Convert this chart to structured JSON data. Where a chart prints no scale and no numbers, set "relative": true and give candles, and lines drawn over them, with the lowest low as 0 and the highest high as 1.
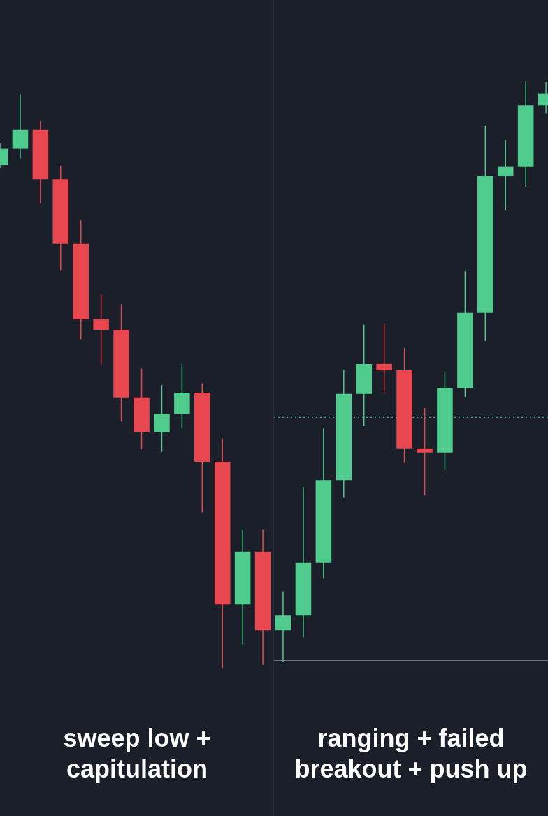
{
  "chart_data": {
    "type": "candlestick",
    "relative": true,
    "categories": [
      null,
      null,
      null,
      null,
      null,
      null,
      null,
      null,
      null,
      null,
      null,
      null,
      null,
      null,
      null,
      null,
      null,
      null,
      null,
      null,
      null,
      null,
      null,
      null,
      null,
      null,
      null,
      null
    ],
    "ohlc": [
      [
        0.857,
        0.894,
        0.852,
        0.885
      ],
      [
        0.885,
        0.977,
        0.867,
        0.917
      ],
      [
        0.917,
        0.932,
        0.792,
        0.833
      ],
      [
        0.833,
        0.856,
        0.677,
        0.723
      ],
      [
        0.723,
        0.763,
        0.56,
        0.594
      ],
      [
        0.594,
        0.636,
        0.517,
        0.576
      ],
      [
        0.576,
        0.62,
        0.42,
        0.461
      ],
      [
        0.461,
        0.51,
        0.373,
        0.402
      ],
      [
        0.402,
        0.482,
        0.368,
        0.433
      ],
      [
        0.433,
        0.517,
        0.408,
        0.469
      ],
      [
        0.469,
        0.485,
        0.265,
        0.351
      ],
      [
        0.351,
        0.39,
        0,
        0.108
      ],
      [
        0.108,
        0.236,
        0.04,
        0.198
      ],
      [
        0.198,
        0.236,
        0.005,
        0.064
      ],
      [
        0.064,
        0.13,
        0.01,
        0.089
      ],
      [
        0.089,
        0.308,
        0.052,
        0.179
      ],
      [
        0.179,
        0.408,
        0.152,
        0.32
      ],
      [
        0.32,
        0.508,
        0.29,
        0.467
      ],
      [
        0.467,
        0.585,
        0.412,
        0.518
      ],
      [
        0.518,
        0.586,
        0.469,
        0.507
      ],
      [
        0.507,
        0.545,
        0.349,
        0.374
      ],
      [
        0.374,
        0.443,
        0.294,
        0.367
      ],
      [
        0.367,
        0.505,
        0.336,
        0.477
      ],
      [
        0.477,
        0.676,
        0.462,
        0.605
      ],
      [
        0.605,
        0.924,
        0.557,
        0.838
      ],
      [
        0.838,
        0.899,
        0.781,
        0.854
      ],
      [
        0.854,
        1,
        0.82,
        0.958
      ],
      [
        0.958,
        0.998,
        0.945,
        0.979
      ]
    ],
    "colors": [
      "#4ecb8d",
      "#4ecb8d",
      "#e8474f",
      "#e8474f",
      "#e8474f",
      "#e8474f",
      "#e8474f",
      "#e8474f",
      "#4ecb8d",
      "#4ecb8d",
      "#e8474f",
      "#e8474f",
      "#4ecb8d",
      "#e8474f",
      "#4ecb8d",
      "#4ecb8d",
      "#4ecb8d",
      "#4ecb8d",
      "#4ecb8d",
      "#e8474f",
      "#e8474f",
      "#e8474f",
      "#4ecb8d",
      "#4ecb8d",
      "#4ecb8d",
      "#4ecb8d",
      "#4ecb8d",
      "#4ecb8d"
    ],
    "ref_lines": [
      {
        "axis": "y",
        "value": 0.427,
        "color": "#2a9d8f",
        "line_style": "dotted"
      },
      {
        "axis": "y",
        "value": 0.013,
        "color": "#8a8f98",
        "line_style": "solid"
      }
    ],
    "annotations": [
      "sweep low +\ncapitulation",
      "ranging + failed\nbreakout + push up"
    ]
  }
}
